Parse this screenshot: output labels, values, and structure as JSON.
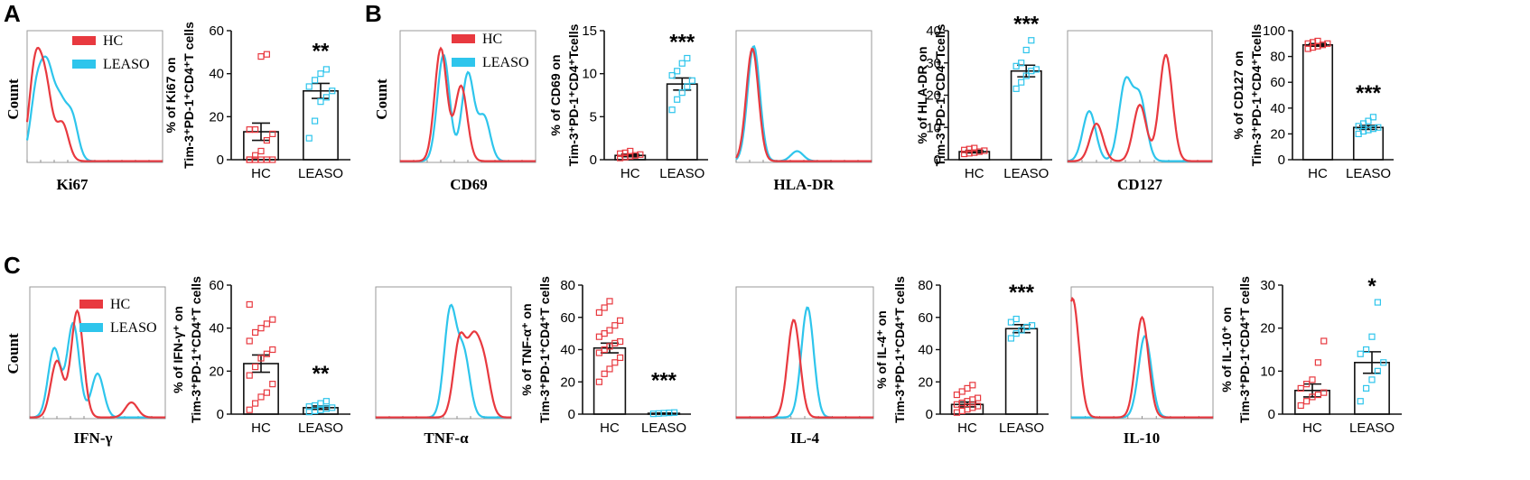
{
  "colors": {
    "hc": "#e8393f",
    "leaso": "#2ec5ec",
    "axis": "#111111",
    "box": "#9a9a9a"
  },
  "panel_letters": {
    "a": "A",
    "b": "B",
    "c": "C"
  },
  "chart_data": [
    {
      "type": "histogram",
      "id": "hist-ki67",
      "xlabel": "Ki67",
      "ylabel": "Count",
      "legend": [
        "HC",
        "LEASO"
      ],
      "legend_location": "top-left",
      "series": [
        {
          "name": "HC",
          "peaks": [
            [
              0.06,
              0.75
            ],
            [
              0.14,
              0.55
            ],
            [
              0.26,
              0.3
            ]
          ]
        },
        {
          "name": "LEASO",
          "peaks": [
            [
              0.07,
              0.55
            ],
            [
              0.15,
              0.65
            ],
            [
              0.24,
              0.42
            ],
            [
              0.33,
              0.35
            ]
          ]
        }
      ]
    },
    {
      "type": "bar",
      "id": "bar-ki67",
      "title": "",
      "ylabel_line1": "% of Ki67 on",
      "ylabel_line2": "Tim-3⁺PD-1⁺CD4⁺T cells",
      "categories": [
        "HC",
        "LEASO"
      ],
      "ylim": [
        0,
        60
      ],
      "yticks": [
        0,
        20,
        40,
        60
      ],
      "means": [
        13,
        32
      ],
      "errors": [
        4,
        3.5
      ],
      "significance": "**",
      "points": [
        [
          0,
          0,
          0,
          0,
          0,
          0,
          2,
          4,
          9,
          12,
          14,
          14,
          48,
          49
        ],
        [
          10,
          18,
          27,
          29,
          32,
          34,
          37,
          40,
          42
        ]
      ]
    },
    {
      "type": "histogram",
      "id": "hist-cd69",
      "xlabel": "CD69",
      "ylabel": "Count",
      "legend": [
        "HC",
        "LEASO"
      ],
      "legend_location": "top-right",
      "series": [
        {
          "name": "HC",
          "peaks": [
            [
              0.3,
              0.9
            ],
            [
              0.45,
              0.6
            ]
          ]
        },
        {
          "name": "LEASO",
          "peaks": [
            [
              0.32,
              0.85
            ],
            [
              0.5,
              0.7
            ],
            [
              0.62,
              0.35
            ]
          ]
        }
      ]
    },
    {
      "type": "bar",
      "id": "bar-cd69",
      "ylabel_line1": "% of CD69 on",
      "ylabel_line2": "Tim-3⁺PD-1⁺CD4⁺Tcells",
      "categories": [
        "HC",
        "LEASO"
      ],
      "ylim": [
        0,
        15
      ],
      "yticks": [
        0,
        5,
        10,
        15
      ],
      "means": [
        0.5,
        8.8
      ],
      "errors": [
        0.15,
        0.7
      ],
      "significance": "***",
      "points": [
        [
          0.2,
          0.3,
          0.4,
          0.5,
          0.6,
          0.7,
          0.8,
          1.0
        ],
        [
          5.8,
          7.0,
          7.8,
          8.5,
          9.2,
          9.8,
          10.3,
          11.2,
          11.8
        ]
      ]
    },
    {
      "type": "histogram",
      "id": "hist-hladr",
      "xlabel": "HLA-DR",
      "ylabel": "",
      "series": [
        {
          "name": "HC",
          "peaks": [
            [
              0.12,
              0.9
            ]
          ]
        },
        {
          "name": "LEASO",
          "peaks": [
            [
              0.13,
              0.92
            ],
            [
              0.45,
              0.08
            ]
          ]
        }
      ]
    },
    {
      "type": "bar",
      "id": "bar-hladr",
      "ylabel_line1": "% of HLA-DR on",
      "ylabel_line2": "Tim-3⁺PD-1⁺CD4⁺Tcells",
      "categories": [
        "HC",
        "LEASO"
      ],
      "ylim": [
        0,
        40
      ],
      "yticks": [
        0,
        10,
        20,
        30,
        40
      ],
      "means": [
        2.5,
        27.5
      ],
      "errors": [
        0.4,
        1.8
      ],
      "significance": "***",
      "points": [
        [
          1.8,
          2.0,
          2.2,
          2.5,
          2.8,
          3.0,
          3.3,
          3.6
        ],
        [
          22,
          24,
          26,
          27.5,
          28,
          29,
          30,
          34,
          37
        ]
      ]
    },
    {
      "type": "histogram",
      "id": "hist-cd127",
      "xlabel": "CD127",
      "ylabel": "",
      "series": [
        {
          "name": "HC",
          "peaks": [
            [
              0.2,
              0.3
            ],
            [
              0.5,
              0.45
            ],
            [
              0.68,
              0.85
            ]
          ]
        },
        {
          "name": "LEASO",
          "peaks": [
            [
              0.15,
              0.4
            ],
            [
              0.4,
              0.62
            ],
            [
              0.5,
              0.5
            ]
          ]
        }
      ]
    },
    {
      "type": "bar",
      "id": "bar-cd127",
      "ylabel_line1": "% of CD127 on",
      "ylabel_line2": "Tim-3⁺PD-1⁺CD4⁺Tcells",
      "categories": [
        "HC",
        "LEASO"
      ],
      "ylim": [
        0,
        100
      ],
      "yticks": [
        0,
        20,
        40,
        60,
        80,
        100
      ],
      "means": [
        89,
        25
      ],
      "errors": [
        1,
        1.5
      ],
      "significance": "***",
      "points": [
        [
          86,
          87,
          88,
          89,
          90,
          90,
          91,
          92
        ],
        [
          20,
          22,
          23,
          24,
          25,
          26,
          28,
          30,
          33
        ]
      ]
    },
    {
      "type": "histogram",
      "id": "hist-ifng",
      "xlabel": "IFN-γ",
      "ylabel": "Count",
      "legend": [
        "HC",
        "LEASO"
      ],
      "legend_location": "top-left",
      "series": [
        {
          "name": "HC",
          "peaks": [
            [
              0.35,
              0.85
            ],
            [
              0.2,
              0.45
            ],
            [
              0.75,
              0.12
            ]
          ]
        },
        {
          "name": "LEASO",
          "peaks": [
            [
              0.32,
              0.75
            ],
            [
              0.18,
              0.55
            ],
            [
              0.5,
              0.35
            ]
          ]
        }
      ]
    },
    {
      "type": "bar",
      "id": "bar-ifng",
      "ylabel_line1": "% of IFN-γ⁺ on",
      "ylabel_line2": "Tim-3⁺PD-1⁺CD4⁺T cells",
      "categories": [
        "HC",
        "LEASO"
      ],
      "ylim": [
        0,
        60
      ],
      "yticks": [
        0,
        20,
        40,
        60
      ],
      "means": [
        23.5,
        3
      ],
      "errors": [
        4,
        0.8
      ],
      "significance": "**",
      "points": [
        [
          2,
          5,
          8,
          10,
          14,
          18,
          22,
          26,
          28,
          30,
          34,
          38,
          40,
          42,
          44,
          51
        ],
        [
          1,
          1.5,
          2,
          2.5,
          3,
          3.5,
          4,
          5,
          6
        ]
      ]
    },
    {
      "type": "histogram",
      "id": "hist-tnfa",
      "xlabel": "TNF-α",
      "ylabel": "",
      "series": [
        {
          "name": "HC",
          "peaks": [
            [
              0.62,
              0.62
            ],
            [
              0.72,
              0.55
            ],
            [
              0.8,
              0.4
            ]
          ]
        },
        {
          "name": "LEASO",
          "peaks": [
            [
              0.55,
              0.85
            ],
            [
              0.65,
              0.5
            ]
          ]
        }
      ]
    },
    {
      "type": "bar",
      "id": "bar-tnfa",
      "ylabel_line1": "% of TNF-α⁺ on",
      "ylabel_line2": "Tim-3⁺PD-1⁺CD4⁺T cells",
      "categories": [
        "HC",
        "LEASO"
      ],
      "ylim": [
        0,
        80
      ],
      "yticks": [
        0,
        20,
        40,
        60,
        80
      ],
      "means": [
        41,
        0.5
      ],
      "errors": [
        3,
        0.2
      ],
      "significance": "***",
      "points": [
        [
          20,
          25,
          28,
          32,
          35,
          38,
          40,
          42,
          44,
          45,
          48,
          50,
          52,
          55,
          58,
          63,
          66,
          70
        ],
        [
          0.2,
          0.4,
          0.6,
          0.8,
          1.0
        ]
      ]
    },
    {
      "type": "histogram",
      "id": "hist-il4",
      "xlabel": "IL-4",
      "ylabel": "",
      "series": [
        {
          "name": "HC",
          "peaks": [
            [
              0.42,
              0.78
            ]
          ]
        },
        {
          "name": "LEASO",
          "peaks": [
            [
              0.52,
              0.88
            ]
          ]
        }
      ]
    },
    {
      "type": "bar",
      "id": "bar-il4",
      "ylabel_line1": "% of IL-4⁺ on",
      "ylabel_line2": "Tim-3⁺PD-1⁺CD4⁺T cells",
      "categories": [
        "HC",
        "LEASO"
      ],
      "ylim": [
        0,
        80
      ],
      "yticks": [
        0,
        20,
        40,
        60,
        80
      ],
      "means": [
        6,
        53
      ],
      "errors": [
        1.5,
        2.5
      ],
      "significance": "***",
      "points": [
        [
          1,
          2,
          3,
          4,
          5,
          6,
          7,
          8,
          9,
          10,
          12,
          14,
          16,
          18
        ],
        [
          47,
          50,
          52,
          54,
          55,
          57,
          59
        ]
      ]
    },
    {
      "type": "histogram",
      "id": "hist-il10",
      "xlabel": "IL-10",
      "ylabel": "",
      "series": [
        {
          "name": "HC",
          "peaks": [
            [
              0.5,
              0.8
            ],
            [
              0.01,
              0.95
            ]
          ]
        },
        {
          "name": "LEASO",
          "peaks": [
            [
              0.52,
              0.65
            ]
          ]
        }
      ]
    },
    {
      "type": "bar",
      "id": "bar-il10",
      "ylabel_line1": "% of IL-10⁺ on",
      "ylabel_line2": "Tim-3⁺PD-1⁺CD4⁺T cells",
      "categories": [
        "HC",
        "LEASO"
      ],
      "ylim": [
        0,
        30
      ],
      "yticks": [
        0,
        10,
        20,
        30
      ],
      "means": [
        5.5,
        12
      ],
      "errors": [
        1.5,
        2.5
      ],
      "significance": "*",
      "points": [
        [
          2,
          3,
          4,
          4.5,
          5,
          6,
          7,
          8,
          12,
          17
        ],
        [
          3,
          6,
          8,
          10,
          12,
          14,
          15,
          18,
          26
        ]
      ]
    }
  ]
}
